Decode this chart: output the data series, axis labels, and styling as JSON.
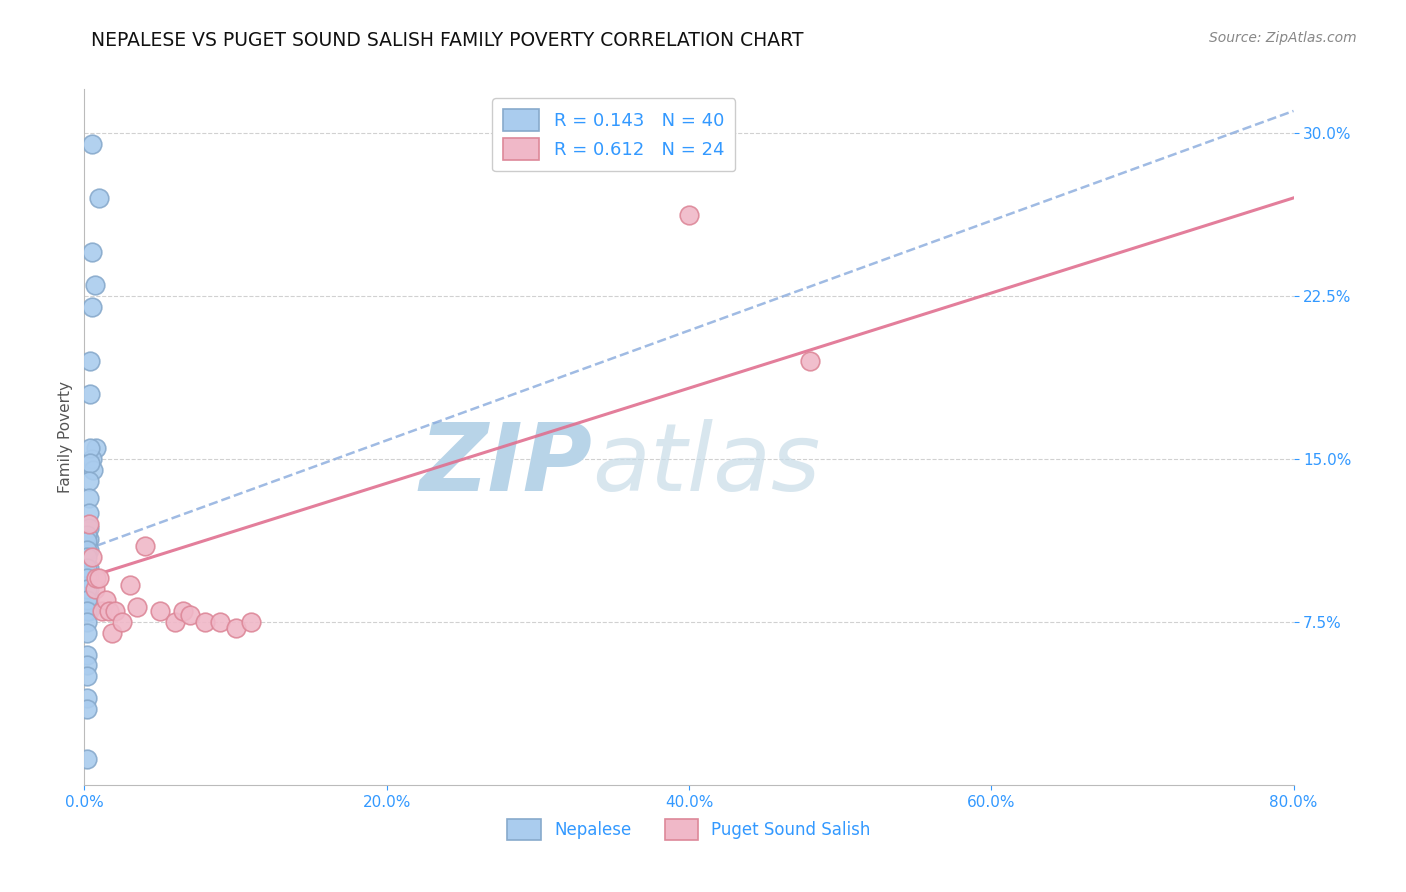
{
  "title": "NEPALESE VS PUGET SOUND SALISH FAMILY POVERTY CORRELATION CHART",
  "source": "Source: ZipAtlas.com",
  "ylabel": "Family Poverty",
  "xlim": [
    0.0,
    0.8
  ],
  "ylim": [
    0.0,
    0.32
  ],
  "xticks": [
    0.0,
    0.2,
    0.4,
    0.6,
    0.8
  ],
  "xtick_labels": [
    "0.0%",
    "20.0%",
    "40.0%",
    "60.0%",
    "80.0%"
  ],
  "yticks_right": [
    0.075,
    0.15,
    0.225,
    0.3
  ],
  "ytick_labels_right": [
    "7.5%",
    "15.0%",
    "22.5%",
    "30.0%"
  ],
  "series1_label": "Nepalese",
  "series1_R": "0.143",
  "series1_N": "40",
  "series1_color": "#aaccee",
  "series1_edge": "#88aacc",
  "series2_label": "Puget Sound Salish",
  "series2_R": "0.612",
  "series2_N": "24",
  "series2_color": "#f0b8c8",
  "series2_edge": "#dd8899",
  "nepalese_x": [
    0.005,
    0.01,
    0.005,
    0.007,
    0.005,
    0.008,
    0.005,
    0.006,
    0.004,
    0.004,
    0.004,
    0.004,
    0.003,
    0.003,
    0.003,
    0.003,
    0.003,
    0.003,
    0.003,
    0.003,
    0.003,
    0.003,
    0.003,
    0.002,
    0.002,
    0.002,
    0.002,
    0.002,
    0.002,
    0.002,
    0.002,
    0.002,
    0.002,
    0.002,
    0.002,
    0.002,
    0.002,
    0.002,
    0.002,
    0.002
  ],
  "nepalese_y": [
    0.295,
    0.27,
    0.245,
    0.23,
    0.22,
    0.155,
    0.15,
    0.145,
    0.195,
    0.18,
    0.155,
    0.148,
    0.14,
    0.132,
    0.125,
    0.118,
    0.113,
    0.108,
    0.1,
    0.095,
    0.09,
    0.085,
    0.08,
    0.115,
    0.112,
    0.108,
    0.105,
    0.1,
    0.095,
    0.09,
    0.085,
    0.08,
    0.075,
    0.07,
    0.06,
    0.055,
    0.05,
    0.04,
    0.035,
    0.012
  ],
  "salish_x": [
    0.003,
    0.005,
    0.007,
    0.008,
    0.01,
    0.012,
    0.014,
    0.016,
    0.018,
    0.02,
    0.025,
    0.03,
    0.035,
    0.04,
    0.05,
    0.06,
    0.065,
    0.07,
    0.08,
    0.09,
    0.1,
    0.11,
    0.4,
    0.48
  ],
  "salish_y": [
    0.12,
    0.105,
    0.09,
    0.095,
    0.095,
    0.08,
    0.085,
    0.08,
    0.07,
    0.08,
    0.075,
    0.092,
    0.082,
    0.11,
    0.08,
    0.075,
    0.08,
    0.078,
    0.075,
    0.075,
    0.072,
    0.075,
    0.262,
    0.195
  ],
  "blue_trendline_x": [
    0.0,
    0.8
  ],
  "blue_trendline_y": [
    0.108,
    0.31
  ],
  "pink_trendline_x": [
    0.0,
    0.8
  ],
  "pink_trendline_y": [
    0.095,
    0.27
  ],
  "background_color": "#ffffff",
  "grid_color": "#cccccc",
  "legend_color": "#3399ff",
  "title_color": "#111111",
  "axis_label_color": "#3399ff",
  "watermark_color": "#d8e8f0"
}
